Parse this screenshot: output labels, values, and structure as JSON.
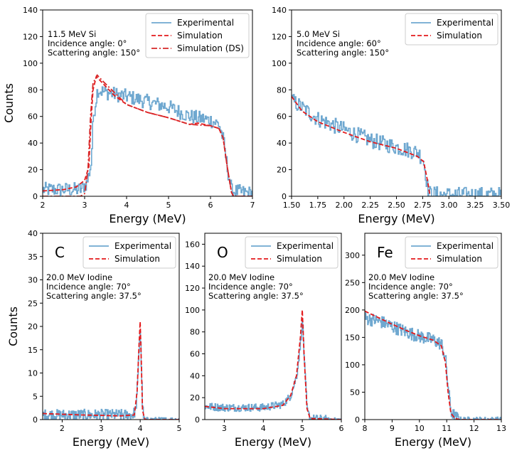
{
  "figure": {
    "colors": {
      "experimental": "#6fa8d0",
      "simulation": "#e41a1c",
      "ds": "#d62728"
    }
  },
  "chart_data": [
    {
      "type": "line",
      "id": "p1",
      "xlabel": "Energy (MeV)",
      "ylabel": "Counts",
      "xlim": [
        2,
        7
      ],
      "ylim": [
        0,
        140
      ],
      "xticks": [
        2,
        3,
        4,
        5,
        6,
        7
      ],
      "xtick_labels": [
        "2",
        "3",
        "4",
        "5",
        "6",
        "7"
      ],
      "yticks": [
        0,
        20,
        40,
        60,
        80,
        100,
        120,
        140
      ],
      "ytick_labels": [
        "0",
        "20",
        "40",
        "60",
        "80",
        "100",
        "120",
        "140"
      ],
      "annotation": [
        "11.5 MeV Si",
        "Incidence angle: 0°",
        "Scattering angle: 150°"
      ],
      "legend_loc": "top-right",
      "series": [
        {
          "name": "Experimental",
          "style": "step",
          "color": "#6fa8d0",
          "noise": 5.5,
          "x": [
            2.0,
            2.5,
            2.9,
            3.05,
            3.15,
            3.2,
            3.3,
            3.5,
            4.0,
            4.5,
            5.0,
            5.5,
            6.0,
            6.2,
            6.3,
            6.4,
            6.5,
            7.0
          ],
          "y": [
            5,
            5,
            5,
            10,
            25,
            60,
            80,
            78,
            75,
            71,
            67,
            60,
            57,
            54,
            42,
            20,
            4,
            2
          ]
        },
        {
          "name": "Simulation",
          "style": "dashed",
          "color": "#e41a1c",
          "x": [
            2.0,
            2.5,
            2.8,
            3.0,
            3.1,
            3.15,
            3.2,
            3.28,
            3.4,
            3.7,
            4.0,
            4.5,
            5.0,
            5.3,
            5.5,
            5.7,
            6.0,
            6.2,
            6.3,
            6.4,
            6.5,
            6.55,
            7.0
          ],
          "y": [
            4,
            5,
            7,
            12,
            22,
            55,
            80,
            90,
            86,
            76,
            69,
            63,
            59,
            56,
            54,
            55,
            53,
            51,
            44,
            22,
            3,
            0,
            0
          ]
        },
        {
          "name": "Simulation (DS)",
          "style": "dashdot",
          "color": "#d62728",
          "x": [
            2.0,
            2.9,
            3.0,
            3.08,
            3.14,
            3.2,
            3.3,
            3.45,
            4.0,
            4.5,
            5.0,
            5.5,
            6.0,
            6.2,
            6.3,
            6.4,
            6.5,
            6.55,
            7.0
          ],
          "y": [
            0,
            0,
            2,
            20,
            60,
            85,
            91,
            86,
            69,
            63,
            59,
            54,
            53,
            51,
            44,
            22,
            3,
            0,
            0
          ]
        }
      ]
    },
    {
      "type": "line",
      "id": "p2",
      "xlabel": "Energy (MeV)",
      "ylabel": "",
      "xlim": [
        1.5,
        3.5
      ],
      "ylim": [
        0,
        140
      ],
      "xticks": [
        1.5,
        1.75,
        2.0,
        2.25,
        2.5,
        2.75,
        3.0,
        3.25,
        3.5
      ],
      "xtick_labels": [
        "1.50",
        "1.75",
        "2.00",
        "2.25",
        "2.50",
        "2.75",
        "3.00",
        "3.25",
        "3.50"
      ],
      "yticks": [
        0,
        20,
        40,
        60,
        80,
        100,
        120,
        140
      ],
      "ytick_labels": [
        "0",
        "20",
        "40",
        "60",
        "80",
        "100",
        "120",
        "140"
      ],
      "annotation": [
        "5.0 MeV Si",
        "Incidence angle: 60°",
        "Scattering angle: 150°"
      ],
      "legend_loc": "top-right",
      "series": [
        {
          "name": "Experimental",
          "style": "step",
          "color": "#6fa8d0",
          "noise": 6,
          "x": [
            1.5,
            1.75,
            2.0,
            2.25,
            2.5,
            2.7,
            2.75,
            2.78,
            2.8,
            3.0,
            3.5
          ],
          "y": [
            72,
            58,
            50,
            42,
            37,
            33,
            28,
            15,
            2,
            1,
            1
          ]
        },
        {
          "name": "Simulation",
          "style": "dashed",
          "color": "#e41a1c",
          "x": [
            1.5,
            1.6,
            1.75,
            2.0,
            2.25,
            2.5,
            2.7,
            2.76,
            2.8,
            2.82
          ],
          "y": [
            75,
            64,
            56,
            48,
            41,
            36,
            30,
            26,
            10,
            0
          ]
        }
      ]
    },
    {
      "type": "line",
      "id": "p3",
      "xlabel": "Energy (MeV)",
      "ylabel": "Counts",
      "xlim": [
        1.5,
        5
      ],
      "ylim": [
        0,
        40
      ],
      "xticks": [
        2,
        3,
        4,
        5
      ],
      "xtick_labels": [
        "2",
        "3",
        "4",
        "5"
      ],
      "yticks": [
        0,
        5,
        10,
        15,
        20,
        25,
        30,
        35,
        40
      ],
      "ytick_labels": [
        "0",
        "5",
        "10",
        "15",
        "20",
        "25",
        "30",
        "35",
        "40"
      ],
      "panel_label": "C",
      "annotation": [
        "20.0 MeV Iodine",
        "Incidence angle: 70°",
        "Scattering angle: 37.5°"
      ],
      "legend_loc": "top-right",
      "series": [
        {
          "name": "Experimental",
          "style": "step",
          "color": "#6fa8d0",
          "noise": 1.2,
          "x": [
            1.5,
            3.0,
            3.8,
            3.88,
            3.93,
            3.97,
            4.0,
            4.03,
            4.06,
            4.1,
            5.0
          ],
          "y": [
            1,
            1,
            1,
            2,
            8,
            16,
            20,
            9,
            2,
            0,
            0
          ]
        },
        {
          "name": "Simulation",
          "style": "dashed",
          "color": "#e41a1c",
          "x": [
            1.5,
            2.5,
            3.5,
            3.85,
            3.92,
            3.97,
            4.0,
            4.03,
            4.06,
            4.12,
            5.0
          ],
          "y": [
            1.3,
            1.0,
            0.8,
            1.0,
            6,
            16,
            21,
            12,
            2,
            0,
            0
          ]
        }
      ]
    },
    {
      "type": "line",
      "id": "p4",
      "xlabel": "Energy (MeV)",
      "ylabel": "",
      "xlim": [
        2.5,
        6
      ],
      "ylim": [
        0,
        170
      ],
      "xticks": [
        3,
        4,
        5,
        6
      ],
      "xtick_labels": [
        "3",
        "4",
        "5",
        "6"
      ],
      "yticks": [
        0,
        20,
        40,
        60,
        80,
        100,
        120,
        140,
        160
      ],
      "ytick_labels": [
        "0",
        "20",
        "40",
        "60",
        "80",
        "100",
        "120",
        "140",
        "160"
      ],
      "panel_label": "O",
      "annotation": [
        "20.0 MeV Iodine",
        "Incidence angle: 70°",
        "Scattering angle: 37.5°"
      ],
      "legend_loc": "top-right",
      "series": [
        {
          "name": "Experimental",
          "style": "step",
          "color": "#6fa8d0",
          "noise": 3.5,
          "x": [
            2.5,
            3.0,
            4.0,
            4.5,
            4.7,
            4.85,
            4.95,
            5.0,
            5.05,
            5.12,
            5.2,
            6.0
          ],
          "y": [
            12,
            11,
            11,
            14,
            22,
            40,
            70,
            92,
            50,
            8,
            1,
            0
          ]
        },
        {
          "name": "Simulation",
          "style": "dashed",
          "color": "#e41a1c",
          "x": [
            2.5,
            3.0,
            4.0,
            4.5,
            4.7,
            4.85,
            4.95,
            5.0,
            5.05,
            5.12,
            5.2,
            6.0
          ],
          "y": [
            12,
            10,
            10,
            13,
            22,
            40,
            75,
            100,
            55,
            10,
            1,
            0
          ]
        }
      ]
    },
    {
      "type": "line",
      "id": "p5",
      "xlabel": "Energy (MeV)",
      "ylabel": "",
      "xlim": [
        8,
        13
      ],
      "ylim": [
        0,
        340
      ],
      "xticks": [
        8,
        9,
        10,
        11,
        12,
        13
      ],
      "xtick_labels": [
        "8",
        "9",
        "10",
        "11",
        "12",
        "13"
      ],
      "yticks": [
        0,
        50,
        100,
        150,
        200,
        250,
        300
      ],
      "ytick_labels": [
        "0",
        "50",
        "100",
        "150",
        "200",
        "250",
        "300"
      ],
      "panel_label": "Fe",
      "annotation": [
        "20.0 MeV Iodine",
        "Incidence angle: 70°",
        "Scattering angle: 37.5°"
      ],
      "legend_loc": "top-right",
      "series": [
        {
          "name": "Experimental",
          "style": "step",
          "color": "#6fa8d0",
          "noise": 12,
          "x": [
            8.0,
            8.5,
            9.0,
            9.5,
            10.0,
            10.5,
            10.8,
            10.95,
            11.05,
            11.15,
            11.3,
            11.5,
            13.0
          ],
          "y": [
            185,
            180,
            170,
            160,
            152,
            145,
            138,
            110,
            55,
            15,
            4,
            0,
            0
          ]
        },
        {
          "name": "Simulation",
          "style": "dashed",
          "color": "#e41a1c",
          "x": [
            8.0,
            8.5,
            9.0,
            9.5,
            10.0,
            10.5,
            10.8,
            10.95,
            11.05,
            11.15,
            11.3,
            11.5,
            13.0
          ],
          "y": [
            198,
            186,
            174,
            163,
            153,
            145,
            135,
            105,
            50,
            12,
            2,
            0,
            0
          ]
        }
      ]
    }
  ]
}
